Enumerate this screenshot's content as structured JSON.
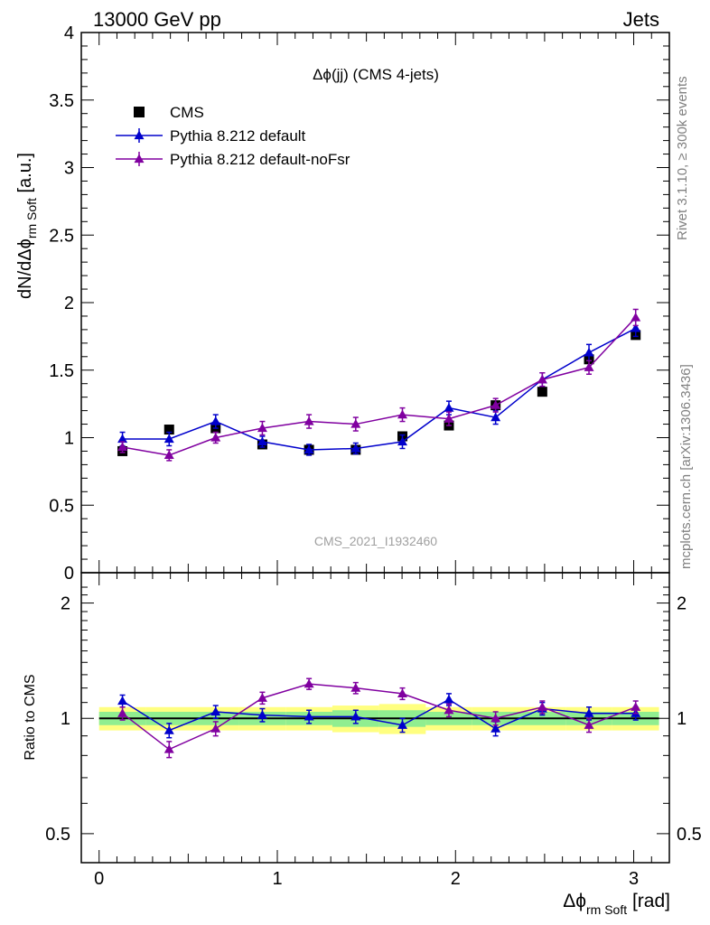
{
  "header": {
    "energy": "13000 GeV pp",
    "category": "Jets",
    "watermark": "CMS_2021_I1932460"
  },
  "side_notes": {
    "rivet": "Rivet 3.1.10, ≥ 300k events",
    "mcplots": "mcplots.cern.ch [arXiv:1306.3436]"
  },
  "chart_data": [
    {
      "type": "scatter",
      "panel": "main",
      "title": "Δϕ(jj) (CMS 4-jets)",
      "ylabel": "dN/dΔϕ_rm Soft [a.u.]",
      "ylabel_main": "dN/dΔϕ",
      "ylabel_sub": "rm Soft",
      "ylabel_unit": "[a.u.]",
      "xlim": [
        -0.1,
        3.2
      ],
      "ylim": [
        0,
        4
      ],
      "yticks": [
        "0",
        "0.5",
        "1",
        "1.5",
        "2",
        "2.5",
        "3",
        "3.5",
        "4"
      ],
      "legend_position": "top-left",
      "x": [
        0.131,
        0.393,
        0.654,
        0.916,
        1.178,
        1.44,
        1.702,
        1.963,
        2.225,
        2.487,
        2.749,
        3.011
      ],
      "series": [
        {
          "name": "CMS",
          "color": "#000000",
          "marker": "square",
          "values": [
            0.9,
            1.06,
            1.07,
            0.95,
            0.91,
            0.91,
            1.01,
            1.09,
            1.24,
            1.34,
            1.58,
            1.76
          ]
        },
        {
          "name": "Pythia 8.212 default",
          "color": "#0000cc",
          "marker": "triangle",
          "values": [
            0.99,
            0.99,
            1.12,
            0.97,
            0.91,
            0.92,
            0.97,
            1.22,
            1.15,
            1.43,
            1.63,
            1.81
          ],
          "errors": [
            0.05,
            0.05,
            0.05,
            0.04,
            0.04,
            0.04,
            0.05,
            0.05,
            0.05,
            0.05,
            0.06,
            0.06
          ]
        },
        {
          "name": "Pythia 8.212 default-noFsr",
          "color": "#8000a0",
          "marker": "triangle",
          "values": [
            0.93,
            0.87,
            1.0,
            1.07,
            1.12,
            1.1,
            1.17,
            1.14,
            1.24,
            1.43,
            1.52,
            1.89
          ],
          "errors": [
            0.04,
            0.04,
            0.04,
            0.05,
            0.05,
            0.05,
            0.05,
            0.05,
            0.05,
            0.05,
            0.05,
            0.06
          ]
        }
      ]
    },
    {
      "type": "scatter",
      "panel": "ratio",
      "ylabel": "Ratio to CMS",
      "xlabel": "Δϕ_rm Soft [rad]",
      "xlabel_main": "Δϕ",
      "xlabel_sub": "rm Soft",
      "xlabel_unit": "[rad]",
      "xlim": [
        -0.1,
        3.2
      ],
      "ylim": [
        0.42,
        2.4
      ],
      "log_y": true,
      "xticks": [
        "0",
        "1",
        "2",
        "3"
      ],
      "yticks": [
        "0.5",
        "1",
        "2"
      ],
      "x": [
        0.131,
        0.393,
        0.654,
        0.916,
        1.178,
        1.44,
        1.702,
        1.963,
        2.225,
        2.487,
        2.749,
        3.011
      ],
      "band_inner": [
        0.04,
        0.04,
        0.04,
        0.04,
        0.04,
        0.05,
        0.05,
        0.04,
        0.04,
        0.04,
        0.04,
        0.04
      ],
      "band_outer": [
        0.07,
        0.07,
        0.07,
        0.07,
        0.07,
        0.08,
        0.09,
        0.07,
        0.07,
        0.07,
        0.07,
        0.07
      ],
      "series": [
        {
          "name": "Pythia 8.212 default",
          "color": "#0000cc",
          "values": [
            1.11,
            0.93,
            1.04,
            1.02,
            1.01,
            1.01,
            0.96,
            1.12,
            0.94,
            1.06,
            1.03,
            1.03
          ],
          "errors": [
            0.04,
            0.04,
            0.04,
            0.04,
            0.04,
            0.04,
            0.04,
            0.04,
            0.04,
            0.04,
            0.04,
            0.04
          ]
        },
        {
          "name": "Pythia 8.212 default-noFsr",
          "color": "#8000a0",
          "values": [
            1.03,
            0.83,
            0.94,
            1.13,
            1.23,
            1.2,
            1.16,
            1.05,
            1.0,
            1.07,
            0.96,
            1.07
          ],
          "errors": [
            0.04,
            0.04,
            0.04,
            0.04,
            0.04,
            0.04,
            0.04,
            0.04,
            0.04,
            0.04,
            0.04,
            0.04
          ]
        }
      ]
    }
  ]
}
